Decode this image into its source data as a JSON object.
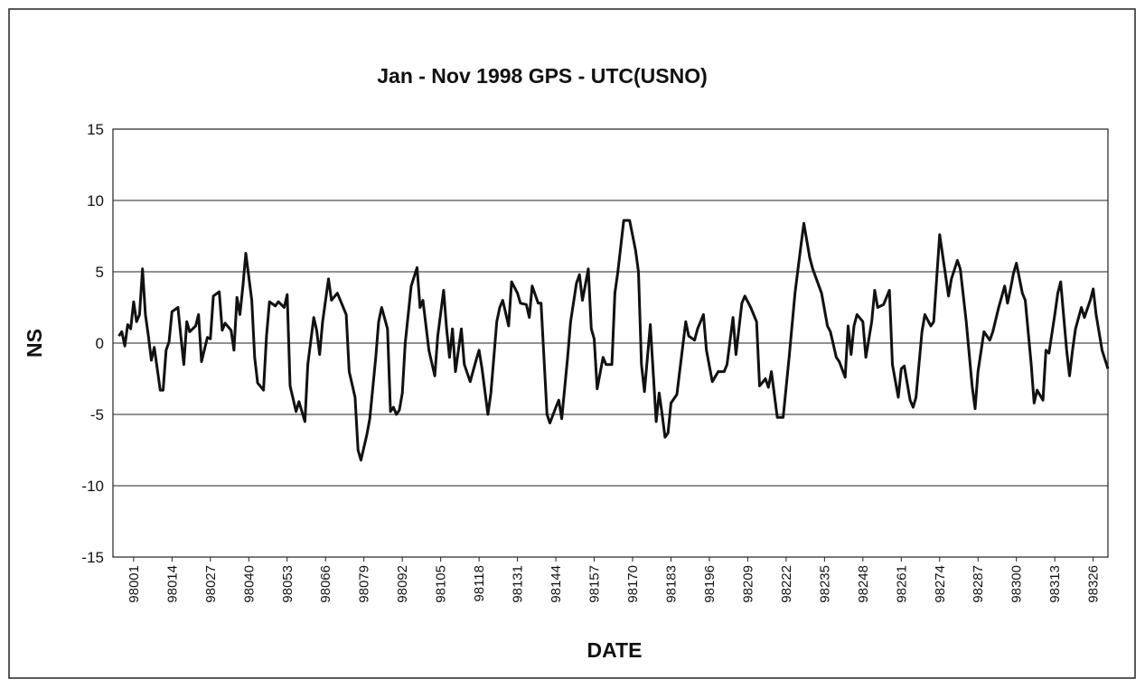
{
  "chart_data": {
    "type": "line",
    "title": "Jan - Nov 1998 GPS - UTC(USNO)",
    "x_label": "DATE",
    "y_label": "NS",
    "xlim": [
      97994,
      98331
    ],
    "ylim": [
      -15,
      15
    ],
    "xticks": [
      98001,
      98014,
      98027,
      98040,
      98053,
      98066,
      98079,
      98092,
      98105,
      98118,
      98131,
      98144,
      98157,
      98170,
      98183,
      98196,
      98209,
      98222,
      98235,
      98248,
      98261,
      98274,
      98287,
      98300,
      98313,
      98326
    ],
    "yticks": [
      -15,
      -10,
      -5,
      0,
      5,
      10,
      15
    ],
    "grid": true,
    "series": [
      {
        "name": "GPS - UTC(USNO)",
        "color": "#111111",
        "x": [
          97996,
          97997,
          97998,
          97999,
          98000,
          98001,
          98002,
          98003,
          98004,
          98005,
          98006,
          98007,
          98008,
          98010,
          98011,
          98012,
          98013,
          98014,
          98016,
          98017,
          98018,
          98019,
          98020,
          98022,
          98023,
          98024,
          98026,
          98027,
          98028,
          98030,
          98031,
          98032,
          98034,
          98035,
          98036,
          98037,
          98038,
          98039,
          98041,
          98042,
          98043,
          98045,
          98046,
          98047,
          98049,
          98050,
          98052,
          98053,
          98054,
          98056,
          98057,
          98059,
          98060,
          98062,
          98063,
          98064,
          98065,
          98067,
          98068,
          98070,
          98071,
          98073,
          98074,
          98076,
          98077,
          98078,
          98080,
          98081,
          98083,
          98084,
          98085,
          98087,
          98088,
          98089,
          98090,
          98091,
          98092,
          98093,
          98095,
          98097,
          98098,
          98099,
          98101,
          98103,
          98104,
          98106,
          98107,
          98108,
          98109,
          98110,
          98112,
          98113,
          98115,
          98117,
          98118,
          98119,
          98121,
          98122,
          98124,
          98125,
          98126,
          98128,
          98129,
          98131,
          98132,
          98134,
          98135,
          98136,
          98138,
          98139,
          98141,
          98142,
          98144,
          98145,
          98146,
          98148,
          98149,
          98151,
          98152,
          98153,
          98155,
          98156,
          98157,
          98158,
          98160,
          98161,
          98163,
          98164,
          98165,
          98167,
          98169,
          98171,
          98172,
          98173,
          98174,
          98176,
          98178,
          98179,
          98180,
          98181,
          98182,
          98183,
          98185,
          98188,
          98189,
          98191,
          98192,
          98194,
          98195,
          98197,
          98199,
          98201,
          98202,
          98204,
          98205,
          98207,
          98208,
          98210,
          98212,
          98213,
          98215,
          98216,
          98217,
          98219,
          98221,
          98223,
          98225,
          98227,
          98228,
          98230,
          98231,
          98234,
          98236,
          98237,
          98239,
          98240,
          98242,
          98243,
          98244,
          98245,
          98246,
          98248,
          98249,
          98251,
          98252,
          98253,
          98255,
          98257,
          98258,
          98260,
          98261,
          98262,
          98264,
          98265,
          98266,
          98268,
          98269,
          98271,
          98272,
          98274,
          98275,
          98277,
          98278,
          98280,
          98281,
          98283,
          98285,
          98286,
          98287,
          98289,
          98291,
          98292,
          98294,
          98296,
          98297,
          98298,
          98299,
          98300,
          98302,
          98303,
          98305,
          98306,
          98307,
          98309,
          98310,
          98311,
          98313,
          98314,
          98315,
          98317,
          98318,
          98319,
          98320,
          98322,
          98323,
          98325,
          98326,
          98327,
          98329,
          98331
        ],
        "values": [
          0.5,
          0.8,
          -0.2,
          1.3,
          1.0,
          2.9,
          1.5,
          2.0,
          5.2,
          2.0,
          0.5,
          -1.2,
          -0.3,
          -3.3,
          -3.3,
          -0.5,
          0.1,
          2.2,
          2.5,
          0.5,
          -1.5,
          1.5,
          0.8,
          1.2,
          2.0,
          -1.3,
          0.4,
          0.3,
          3.3,
          3.6,
          0.9,
          1.4,
          0.9,
          -0.5,
          3.2,
          2.0,
          4.0,
          6.3,
          3.0,
          -1.0,
          -2.8,
          -3.3,
          0.5,
          2.9,
          2.6,
          2.9,
          2.5,
          3.4,
          -3.0,
          -4.8,
          -4.1,
          -5.5,
          -1.5,
          1.8,
          0.9,
          -0.8,
          1.5,
          4.5,
          3.0,
          3.5,
          3.0,
          2.0,
          -2.0,
          -3.8,
          -7.5,
          -8.2,
          -6.4,
          -5.3,
          -1.0,
          1.5,
          2.5,
          1.0,
          -4.8,
          -4.5,
          -5.0,
          -4.7,
          -3.5,
          0.0,
          4.0,
          5.3,
          2.5,
          3.0,
          -0.5,
          -2.3,
          0.5,
          3.7,
          1.0,
          -1.0,
          1.0,
          -2.0,
          1.0,
          -1.5,
          -2.7,
          -1.2,
          -0.5,
          -1.8,
          -5.0,
          -3.5,
          1.5,
          2.5,
          3.0,
          1.2,
          4.3,
          3.5,
          2.8,
          2.7,
          1.8,
          4.0,
          2.8,
          2.8,
          -5.0,
          -5.6,
          -4.5,
          -4.0,
          -5.3,
          -1.0,
          1.5,
          4.2,
          4.8,
          3.0,
          5.2,
          1.0,
          0.3,
          -3.2,
          -1.0,
          -1.5,
          -1.5,
          3.5,
          5.0,
          8.6,
          8.6,
          6.5,
          5.0,
          -1.5,
          -3.4,
          1.3,
          -5.5,
          -3.5,
          -5.0,
          -6.6,
          -6.3,
          -4.2,
          -3.6,
          1.5,
          0.5,
          0.2,
          1.0,
          2.0,
          -0.5,
          -2.7,
          -2.0,
          -2.0,
          -1.5,
          1.8,
          -0.8,
          2.8,
          3.3,
          2.5,
          1.5,
          -3.0,
          -2.5,
          -3.1,
          -2.0,
          -5.2,
          -5.2,
          -1.0,
          3.5,
          6.8,
          8.4,
          6.0,
          5.2,
          3.5,
          1.2,
          0.8,
          -1.0,
          -1.3,
          -2.4,
          1.2,
          -0.8,
          1.2,
          2.0,
          1.5,
          -1.0,
          1.5,
          3.7,
          2.5,
          2.7,
          3.7,
          -1.5,
          -3.8,
          -1.8,
          -1.6,
          -4.0,
          -4.5,
          -3.8,
          0.8,
          2.0,
          1.2,
          1.5,
          7.6,
          6.2,
          3.3,
          4.5,
          5.8,
          5.2,
          1.5,
          -3.0,
          -4.6,
          -2.0,
          0.8,
          0.2,
          0.8,
          2.5,
          4.0,
          2.8,
          3.8,
          4.9,
          5.6,
          3.5,
          3.0,
          -1.5,
          -4.2,
          -3.3,
          -4.0,
          -0.5,
          -0.7,
          2.0,
          3.5,
          4.3,
          -0.5,
          -2.3,
          -0.5,
          1.0,
          2.5,
          1.8,
          3.0,
          3.8,
          2.0,
          -0.5,
          -1.8
        ]
      }
    ]
  }
}
